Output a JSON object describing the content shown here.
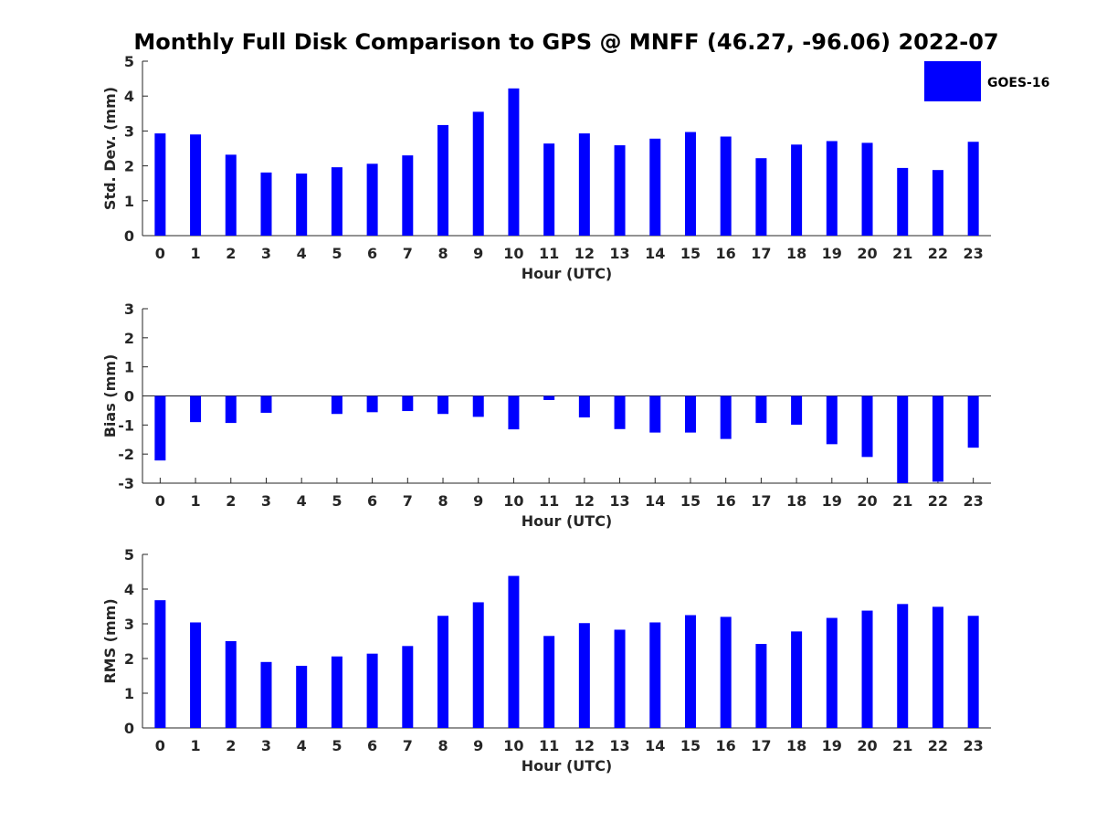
{
  "title": "Monthly Full Disk Comparison to GPS @ MNFF (46.27, -96.06) 2022-07",
  "legend": {
    "label": "GOES-16",
    "color": "#0000ff",
    "position": "top-right"
  },
  "chart_data": [
    {
      "type": "bar",
      "ylabel": "Std. Dev. (mm)",
      "xlabel": "Hour (UTC)",
      "ylim": [
        0,
        5
      ],
      "yticks": [
        0,
        1,
        2,
        3,
        4,
        5
      ],
      "categories": [
        "0",
        "1",
        "2",
        "3",
        "4",
        "5",
        "6",
        "7",
        "8",
        "9",
        "10",
        "11",
        "12",
        "13",
        "14",
        "15",
        "16",
        "17",
        "18",
        "19",
        "20",
        "21",
        "22",
        "23"
      ],
      "series": [
        {
          "name": "GOES-16",
          "color": "#0000ff",
          "values": [
            2.93,
            2.9,
            2.32,
            1.81,
            1.78,
            1.96,
            2.06,
            2.3,
            3.17,
            3.55,
            4.22,
            2.64,
            2.93,
            2.59,
            2.78,
            2.97,
            2.84,
            2.22,
            2.61,
            2.71,
            2.66,
            1.94,
            1.88,
            2.69
          ]
        }
      ]
    },
    {
      "type": "bar",
      "ylabel": "Bias (mm)",
      "xlabel": "Hour (UTC)",
      "ylim": [
        -3,
        3
      ],
      "yticks": [
        -3,
        -2,
        -1,
        0,
        1,
        2,
        3
      ],
      "categories": [
        "0",
        "1",
        "2",
        "3",
        "4",
        "5",
        "6",
        "7",
        "8",
        "9",
        "10",
        "11",
        "12",
        "13",
        "14",
        "15",
        "16",
        "17",
        "18",
        "19",
        "20",
        "21",
        "22",
        "23"
      ],
      "series": [
        {
          "name": "GOES-16",
          "color": "#0000ff",
          "values": [
            -2.22,
            -0.9,
            -0.93,
            -0.58,
            null,
            -0.62,
            -0.56,
            -0.52,
            -0.62,
            -0.72,
            -1.15,
            -0.14,
            -0.74,
            -1.14,
            -1.26,
            -1.26,
            -1.48,
            -0.93,
            -0.99,
            -1.66,
            -2.1,
            -3.0,
            -2.95,
            -1.78
          ]
        }
      ]
    },
    {
      "type": "bar",
      "ylabel": "RMS (mm)",
      "xlabel": "Hour (UTC)",
      "ylim": [
        0,
        5
      ],
      "yticks": [
        0,
        1,
        2,
        3,
        4,
        5
      ],
      "categories": [
        "0",
        "1",
        "2",
        "3",
        "4",
        "5",
        "6",
        "7",
        "8",
        "9",
        "10",
        "11",
        "12",
        "13",
        "14",
        "15",
        "16",
        "17",
        "18",
        "19",
        "20",
        "21",
        "22",
        "23"
      ],
      "series": [
        {
          "name": "GOES-16",
          "color": "#0000ff",
          "values": [
            3.68,
            3.04,
            2.5,
            1.9,
            1.79,
            2.06,
            2.14,
            2.36,
            3.23,
            3.62,
            4.38,
            2.65,
            3.02,
            2.83,
            3.04,
            3.25,
            3.2,
            2.42,
            2.78,
            3.17,
            3.38,
            3.57,
            3.49,
            3.23
          ]
        }
      ]
    }
  ]
}
